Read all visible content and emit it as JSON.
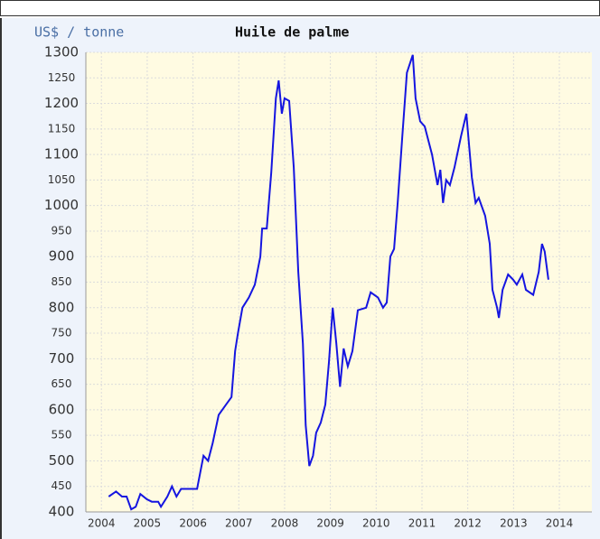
{
  "chart_data": {
    "type": "line",
    "title": "Huile de palme",
    "y_label": "US$ / tonne",
    "x": [
      2004.16,
      2004.32,
      2004.45,
      2004.55,
      2004.65,
      2004.75,
      2004.85,
      2004.99,
      2005.1,
      2005.24,
      2005.3,
      2005.44,
      2005.54,
      2005.64,
      2005.74,
      2005.93,
      2006.09,
      2006.23,
      2006.33,
      2006.43,
      2006.56,
      2006.72,
      2006.84,
      2006.92,
      2006.98,
      2007.08,
      2007.22,
      2007.35,
      2007.47,
      2007.51,
      2007.61,
      2007.71,
      2007.81,
      2007.87,
      2007.94,
      2008.0,
      2008.1,
      2008.2,
      2008.3,
      2008.4,
      2008.46,
      2008.54,
      2008.62,
      2008.69,
      2008.79,
      2008.89,
      2008.97,
      2009.05,
      2009.13,
      2009.21,
      2009.29,
      2009.38,
      2009.48,
      2009.6,
      2009.78,
      2009.88,
      2010.04,
      2010.15,
      2010.23,
      2010.31,
      2010.39,
      2010.47,
      2010.57,
      2010.67,
      2010.8,
      2010.86,
      2010.96,
      2011.06,
      2011.22,
      2011.34,
      2011.4,
      2011.46,
      2011.53,
      2011.61,
      2011.71,
      2011.85,
      2011.97,
      2012.09,
      2012.17,
      2012.24,
      2012.38,
      2012.48,
      2012.54,
      2012.64,
      2012.68,
      2012.76,
      2012.88,
      2012.99,
      2013.07,
      2013.19,
      2013.27,
      2013.43,
      2013.55,
      2013.62,
      2013.68,
      2013.76
    ],
    "series": [
      {
        "name": "Huile de palme",
        "color": "#1515e0",
        "values": [
          430,
          440,
          430,
          430,
          405,
          410,
          435,
          425,
          420,
          420,
          410,
          430,
          450,
          430,
          445,
          445,
          445,
          510,
          500,
          535,
          590,
          610,
          625,
          715,
          750,
          800,
          820,
          845,
          900,
          955,
          955,
          1065,
          1210,
          1245,
          1180,
          1210,
          1205,
          1075,
          870,
          730,
          570,
          490,
          510,
          555,
          575,
          610,
          695,
          800,
          730,
          645,
          720,
          685,
          715,
          795,
          800,
          830,
          820,
          800,
          810,
          900,
          915,
          1005,
          1135,
          1260,
          1295,
          1210,
          1165,
          1155,
          1100,
          1040,
          1070,
          1005,
          1050,
          1040,
          1075,
          1135,
          1180,
          1055,
          1005,
          1015,
          980,
          925,
          835,
          800,
          780,
          835,
          865,
          855,
          845,
          865,
          835,
          825,
          870,
          925,
          910,
          855
        ]
      }
    ],
    "xlim": [
      2003.66,
      2014.71
    ],
    "xticks": [
      2004,
      2005,
      2006,
      2007,
      2008,
      2009,
      2010,
      2011,
      2012,
      2013,
      2014
    ],
    "ylim": [
      400,
      1300
    ],
    "yticks": [
      400,
      450,
      500,
      550,
      600,
      650,
      700,
      750,
      800,
      850,
      900,
      950,
      1000,
      1050,
      1100,
      1150,
      1200,
      1250,
      1300
    ],
    "grid": true
  }
}
